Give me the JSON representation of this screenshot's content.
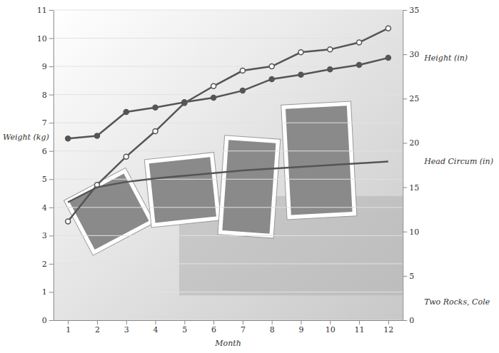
{
  "chart_data": {
    "type": "line",
    "x_label": "Month",
    "x": [
      1,
      2,
      3,
      4,
      5,
      6,
      7,
      8,
      9,
      10,
      11,
      12
    ],
    "xlim": [
      0.5,
      12.5
    ],
    "xticks": [
      1,
      2,
      3,
      4,
      5,
      6,
      7,
      8,
      9,
      10,
      11,
      12
    ],
    "ylim": [
      0,
      11
    ],
    "yticks": [
      0,
      1,
      2,
      3,
      4,
      5,
      6,
      7,
      8,
      9,
      10,
      11
    ],
    "y2lim": [
      0,
      35
    ],
    "y2ticks": [
      0,
      5,
      10,
      15,
      20,
      25,
      30,
      35
    ],
    "grid": true,
    "annotation": "Two Rocks, Cole",
    "series": [
      {
        "name": "Weight (kg)",
        "color": "#555555",
        "marker": "circle-open",
        "line_style": "solid",
        "values": [
          3.5,
          4.8,
          5.8,
          6.7,
          7.7,
          8.3,
          8.85,
          9.0,
          9.5,
          9.6,
          9.85,
          10.35
        ]
      },
      {
        "name": "Height (in)",
        "color": "#555555",
        "marker": "circle",
        "line_style": "solid",
        "axis": "y2",
        "values": [
          20.5,
          20.8,
          23.5,
          24.0,
          24.6,
          25.1,
          25.9,
          27.2,
          27.7,
          28.3,
          28.8,
          29.6
        ]
      },
      {
        "name": "Head Circum (in)",
        "color": "#555555",
        "marker": "none",
        "line_style": "solid",
        "axis": "y2",
        "values": [
          13.3,
          15.0,
          15.6,
          16.0,
          16.3,
          16.6,
          16.9,
          17.1,
          17.3,
          17.5,
          17.7,
          17.9
        ]
      }
    ]
  }
}
